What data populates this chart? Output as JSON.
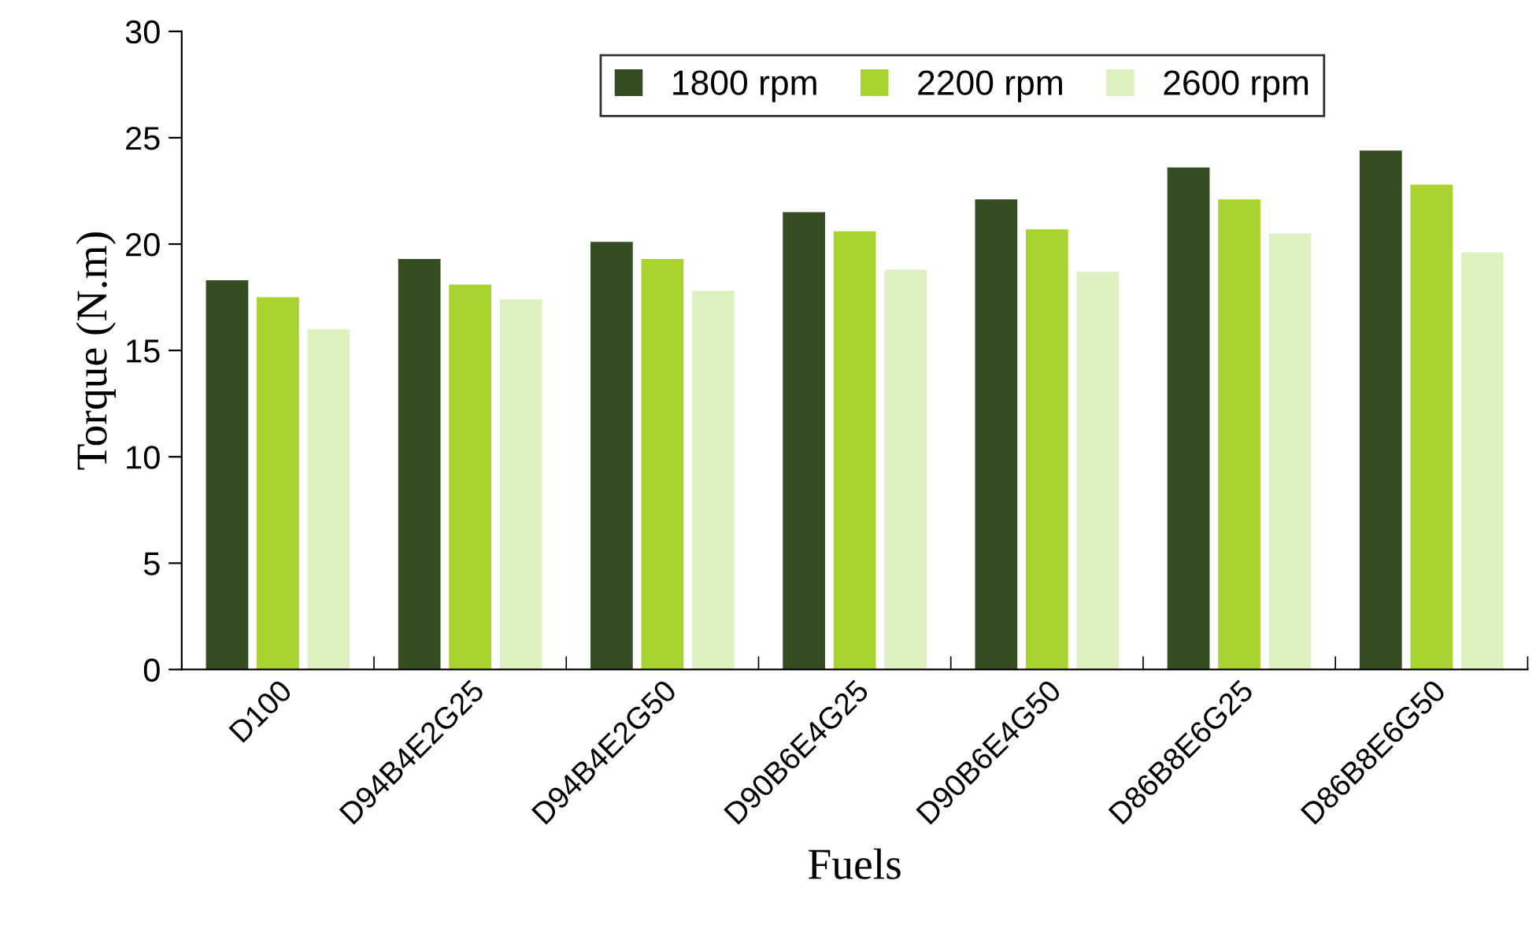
{
  "chart_data": {
    "type": "bar",
    "xlabel": "Fuels",
    "ylabel": "Torque (N.m)",
    "categories": [
      "D100",
      "D94B4E2G25",
      "D94B4E2G50",
      "D90B6E4G25",
      "D90B6E4G50",
      "D86B8E6G25",
      "D86B8E6G50"
    ],
    "series": [
      {
        "name": "1800 rpm",
        "color": "#344e21",
        "values": [
          18.3,
          19.3,
          20.1,
          21.5,
          22.1,
          23.6,
          24.4
        ]
      },
      {
        "name": "2200 rpm",
        "color": "#a9d32e",
        "values": [
          17.5,
          18.1,
          19.3,
          20.6,
          20.7,
          22.1,
          22.8
        ]
      },
      {
        "name": "2600 rpm",
        "color": "#ddf2c0",
        "values": [
          16.0,
          17.4,
          17.8,
          18.8,
          18.7,
          20.5,
          19.6
        ]
      }
    ],
    "ylim": [
      0,
      30
    ],
    "yticks": [
      0,
      5,
      10,
      15,
      20,
      25,
      30
    ],
    "grid": false,
    "legend": "top"
  }
}
